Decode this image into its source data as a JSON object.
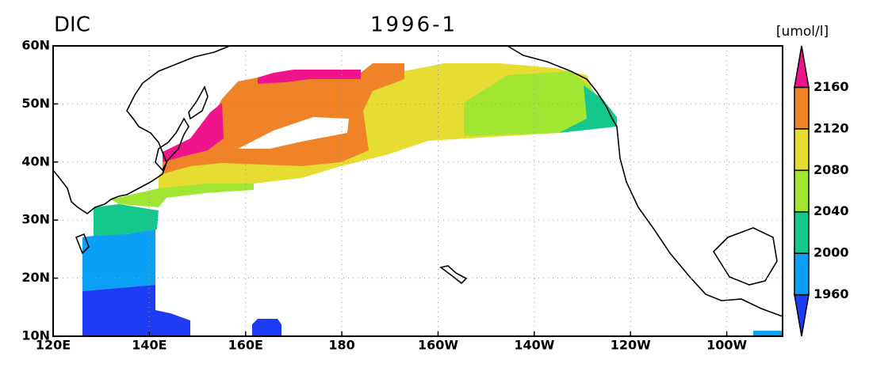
{
  "title": "DIC",
  "subtitle": "1996-1",
  "units": "[umol/l]",
  "map": {
    "xlim": [
      120,
      271.6
    ],
    "ylim": [
      10,
      60
    ],
    "xticks": [
      {
        "value": 120,
        "label": "120E"
      },
      {
        "value": 140,
        "label": "140E"
      },
      {
        "value": 160,
        "label": "160E"
      },
      180,
      {
        "value": 200,
        "label": "160W"
      },
      {
        "value": 220,
        "label": "140W"
      },
      {
        "value": 240,
        "label": "120W"
      },
      {
        "value": 260,
        "label": "100W"
      }
    ],
    "yticks": [
      {
        "value": 10,
        "label": "10N"
      },
      {
        "value": 20,
        "label": "20N"
      },
      {
        "value": 30,
        "label": "30N"
      },
      {
        "value": 40,
        "label": "40N"
      },
      {
        "value": 50,
        "label": "50N"
      },
      {
        "value": 60,
        "label": "60N"
      }
    ],
    "grid": true
  },
  "colorbar": {
    "levels": [
      1960,
      2000,
      2040,
      2080,
      2120,
      2160
    ],
    "colors": [
      "#1e3cf5",
      "#0aa0f5",
      "#14c88c",
      "#a0e632",
      "#e6dc32",
      "#f08228",
      "#f0148c"
    ]
  }
}
